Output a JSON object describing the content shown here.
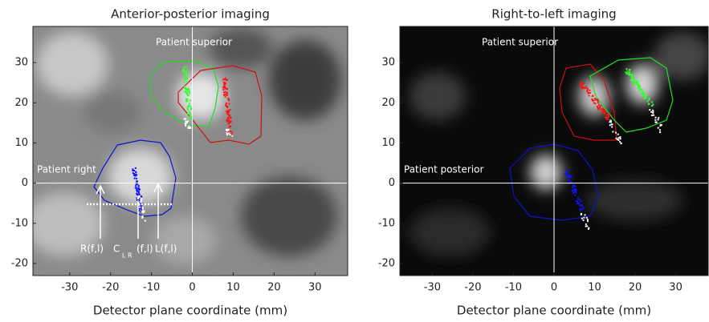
{
  "chart_data": [
    {
      "type": "image",
      "title": "Anterior-posterior imaging",
      "x_label": "Detector plane coordinate (mm)",
      "xlim": [
        -39,
        38
      ],
      "ylim": [
        -23,
        39
      ],
      "xticks": [
        -30,
        -20,
        -10,
        0,
        10,
        20,
        30
      ],
      "yticks": [
        -20,
        -10,
        0,
        10,
        20,
        30
      ],
      "annotations": [
        "Patient superior",
        "Patient right",
        "R(f,l)",
        "C",
        "L R",
        "(f,l)",
        "L(f,l)"
      ]
    },
    {
      "type": "image",
      "title": "Right-to-left imaging",
      "x_label": "Detector plane coordinate (mm)",
      "xlim": [
        -38,
        38
      ],
      "ylim": [
        -23,
        39
      ],
      "xticks": [
        -30,
        -20,
        -10,
        0,
        10,
        20,
        30
      ],
      "yticks": [
        -20,
        -10,
        0,
        10,
        20,
        30
      ],
      "annotations": [
        "Patient superior",
        "Patient posterior"
      ]
    }
  ]
}
